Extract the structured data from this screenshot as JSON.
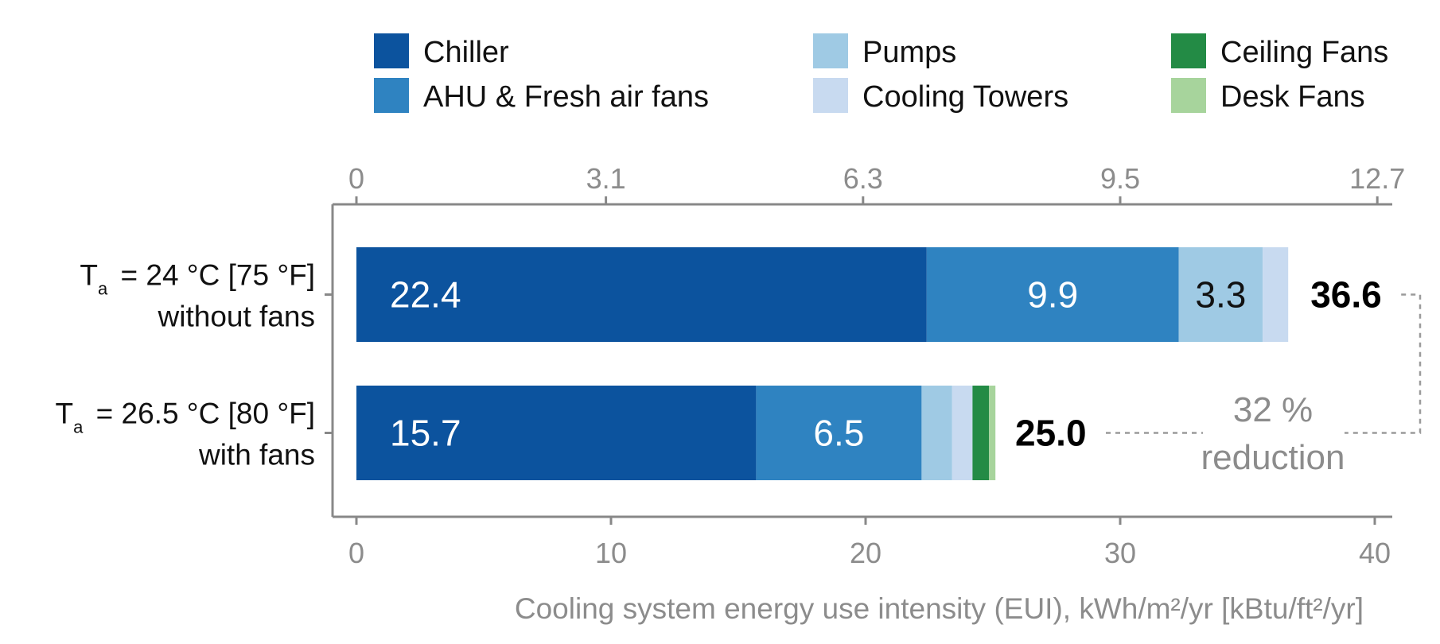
{
  "chart_data": {
    "type": "bar",
    "orientation": "horizontal",
    "stacked": true,
    "categories": [
      {
        "line1_main": "T",
        "line1_sub": "a",
        "line1_rest": " = 24 °C [75 °F]",
        "line2": "without fans"
      },
      {
        "line1_main": "T",
        "line1_sub": "a",
        "line1_rest": " = 26.5 °C [80 °F]",
        "line2": "with fans"
      }
    ],
    "series": [
      {
        "name": "Chiller",
        "color": "#0c539e",
        "values": [
          22.4,
          15.7
        ],
        "labels": [
          "22.4",
          "15.7"
        ],
        "label_color": "#ffffff"
      },
      {
        "name": "AHU & Fresh air fans",
        "color": "#2f83c1",
        "values": [
          9.9,
          6.5
        ],
        "labels": [
          "9.9",
          "6.5"
        ],
        "label_color": "#ffffff"
      },
      {
        "name": "Pumps",
        "color": "#9fcae4",
        "values": [
          3.3,
          1.2
        ],
        "labels": [
          "3.3",
          ""
        ],
        "label_color": "#111111"
      },
      {
        "name": "Cooling Towers",
        "color": "#c8daf0",
        "values": [
          1.0,
          0.8
        ],
        "labels": [
          "",
          ""
        ],
        "label_color": "#111111"
      },
      {
        "name": "Ceiling Fans",
        "color": "#238b45",
        "values": [
          0,
          0.65
        ],
        "labels": [
          "",
          ""
        ],
        "label_color": "#111111"
      },
      {
        "name": "Desk Fans",
        "color": "#a7d49c",
        "values": [
          0,
          0.25
        ],
        "labels": [
          "",
          ""
        ],
        "label_color": "#111111"
      }
    ],
    "totals": [
      "36.6",
      "25.0"
    ],
    "total_values": [
      36.6,
      25.0
    ],
    "annotation": {
      "line1": "32 %",
      "line2": "reduction"
    },
    "xlabel": "Cooling system energy use intensity (EUI), kWh/m²/yr [kBtu/ft²/yr]",
    "xlim": [
      0,
      40
    ],
    "bottom_ticks": [
      0,
      10,
      20,
      30,
      40
    ],
    "top_ticks": [
      {
        "value": 0,
        "label": "0"
      },
      {
        "value": 9.8,
        "label": "3.1"
      },
      {
        "value": 19.9,
        "label": "6.3"
      },
      {
        "value": 30.0,
        "label": "9.5"
      },
      {
        "value": 40.1,
        "label": "12.7"
      }
    ],
    "legend_position": "top",
    "grid": false
  }
}
